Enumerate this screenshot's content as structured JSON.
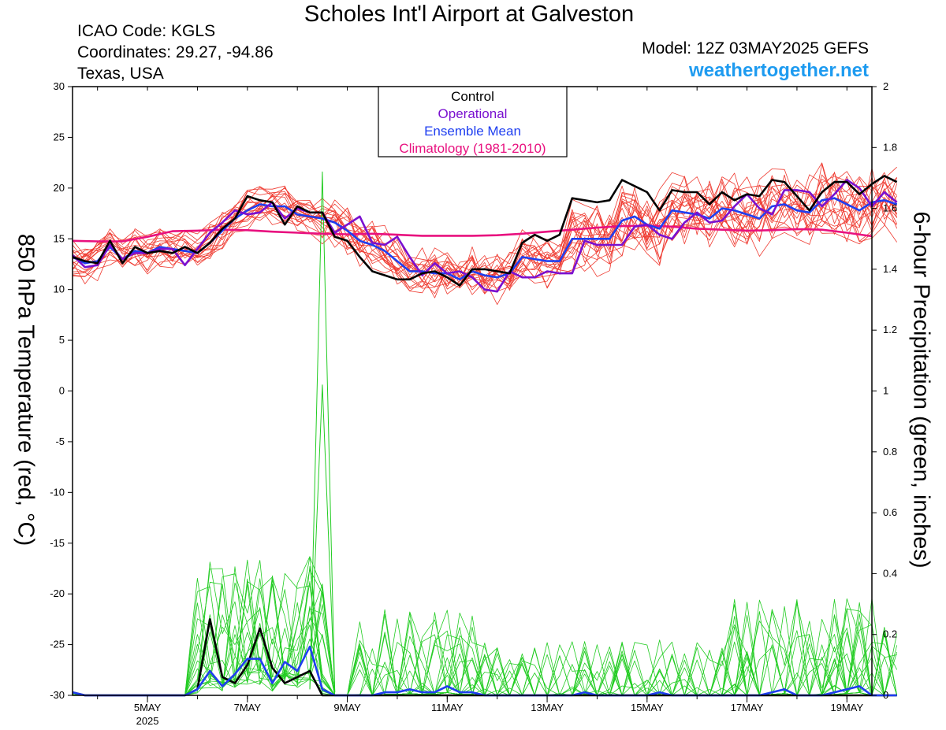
{
  "header": {
    "title": "Scholes Int'l Airport at Galveston",
    "icao": "ICAO Code: KGLS",
    "coords": "Coordinates: 29.27, -94.86",
    "region": "Texas, USA",
    "model": "Model: 12Z 03MAY2025 GEFS",
    "website": "weathertogether.net"
  },
  "colors": {
    "control": "#000000",
    "operational": "#7a10d0",
    "mean": "#1e3ef0",
    "climatology": "#e8117f",
    "members": "#ef3a30",
    "precip": "#22cc22",
    "website": "#1e9bf0"
  },
  "chart_data": {
    "type": "line",
    "title": "Scholes Int'l Airport at Galveston",
    "ylabel": "850 hPa Temperature (red, °C)",
    "y2label": "6-hour Precipitation (green, inches)",
    "x_range": [
      3.5,
      19.5
    ],
    "ylim": [
      -30,
      30
    ],
    "y2lim": [
      0,
      2
    ],
    "x_ticks": [
      {
        "x": 5,
        "label": "5MAY",
        "sub": "2025"
      },
      {
        "x": 7,
        "label": "7MAY",
        "sub": ""
      },
      {
        "x": 9,
        "label": "9MAY",
        "sub": ""
      },
      {
        "x": 11,
        "label": "11MAY",
        "sub": ""
      },
      {
        "x": 13,
        "label": "13MAY",
        "sub": ""
      },
      {
        "x": 15,
        "label": "15MAY",
        "sub": ""
      },
      {
        "x": 17,
        "label": "17MAY",
        "sub": ""
      },
      {
        "x": 19,
        "label": "19MAY",
        "sub": ""
      }
    ],
    "y_ticks": [
      "30",
      "25",
      "20",
      "15",
      "10",
      "5",
      "0",
      "-5",
      "-10",
      "-15",
      "-20",
      "-25",
      "-30"
    ],
    "y2_ticks": [
      "2",
      "1.8",
      "1.6",
      "1.4",
      "1.2",
      "1",
      "0.8",
      "0.6",
      "0.4",
      "0.2",
      "0"
    ],
    "legend": [
      {
        "label": "Control",
        "color": "#000000"
      },
      {
        "label": "Operational",
        "color": "#7a10d0"
      },
      {
        "label": "Ensemble Mean",
        "color": "#1e3ef0"
      },
      {
        "label": "Climatology (1981-2010)",
        "color": "#e8117f"
      }
    ],
    "legend_position": "top-center",
    "x_start": 3.5,
    "x_step": 0.25,
    "temperature": {
      "control": [
        13.2,
        12.8,
        12.6,
        14.8,
        12.6,
        14.2,
        13.6,
        13.8,
        13.6,
        14.2,
        13.6,
        14.6,
        16.0,
        17.0,
        19.2,
        18.8,
        18.6,
        16.4,
        18.2,
        17.6,
        17.6,
        15.2,
        14.8,
        13.2,
        11.8,
        11.4,
        11.0,
        11.0,
        11.6,
        11.8,
        11.2,
        10.4,
        12.0,
        12.0,
        11.8,
        11.6,
        14.6,
        15.4,
        14.8,
        15.4,
        19.0,
        18.8,
        18.6,
        18.8,
        20.8,
        20.2,
        19.6,
        17.8,
        19.8,
        19.6,
        19.6,
        18.4,
        19.6,
        18.8,
        19.4,
        19.2,
        20.8,
        20.6,
        19.2,
        17.8,
        19.6,
        20.6,
        20.6,
        19.4,
        20.4,
        21.2,
        20.6
      ],
      "operational": [
        13.4,
        12.2,
        12.4,
        14.4,
        13.0,
        13.6,
        13.6,
        14.0,
        14.0,
        12.4,
        14.0,
        15.6,
        16.6,
        17.8,
        17.4,
        17.6,
        18.6,
        17.0,
        18.0,
        17.6,
        17.6,
        15.6,
        16.4,
        17.2,
        14.6,
        14.4,
        15.2,
        13.2,
        11.4,
        12.6,
        11.6,
        11.8,
        11.2,
        10.0,
        9.8,
        11.8,
        11.2,
        11.2,
        11.8,
        11.6,
        11.6,
        14.8,
        14.4,
        14.4,
        14.4,
        16.2,
        16.4,
        15.4,
        15.0,
        16.6,
        17.6,
        16.6,
        16.8,
        18.2,
        19.4,
        18.0,
        17.4,
        19.8,
        19.8,
        19.6,
        18.2,
        19.4,
        20.8,
        20.0,
        18.2,
        19.6,
        18.6
      ],
      "mean": [
        13.2,
        12.6,
        12.8,
        14.2,
        13.0,
        13.8,
        13.6,
        14.2,
        14.0,
        13.8,
        13.6,
        14.6,
        15.8,
        17.0,
        17.8,
        18.4,
        18.2,
        18.2,
        17.4,
        17.2,
        17.0,
        16.6,
        15.8,
        14.8,
        14.4,
        13.8,
        12.8,
        11.8,
        11.8,
        11.6,
        11.6,
        11.0,
        11.8,
        11.4,
        11.2,
        11.6,
        13.2,
        13.0,
        12.8,
        12.8,
        15.0,
        15.0,
        15.0,
        15.0,
        16.8,
        17.2,
        16.4,
        16.0,
        17.8,
        17.6,
        17.4,
        17.0,
        18.0,
        17.8,
        17.4,
        17.0,
        18.2,
        18.4,
        17.8,
        17.6,
        18.8,
        19.0,
        18.4,
        17.8,
        18.6,
        18.8,
        18.4
      ],
      "climatology": [
        [
          3.5,
          14.8
        ],
        [
          4.0,
          14.75
        ],
        [
          4.5,
          14.75
        ],
        [
          5.0,
          15.2
        ],
        [
          5.5,
          15.75
        ],
        [
          6.0,
          15.8
        ],
        [
          6.5,
          15.9
        ],
        [
          7.0,
          15.85
        ],
        [
          7.5,
          15.7
        ],
        [
          8.0,
          15.6
        ],
        [
          8.5,
          15.5
        ],
        [
          9.0,
          15.45
        ],
        [
          9.5,
          15.5
        ],
        [
          10.0,
          15.4
        ],
        [
          10.5,
          15.3
        ],
        [
          11.0,
          15.3
        ],
        [
          11.5,
          15.3
        ],
        [
          12.0,
          15.35
        ],
        [
          12.5,
          15.5
        ],
        [
          13.0,
          15.7
        ],
        [
          13.5,
          15.9
        ],
        [
          14.0,
          16.1
        ],
        [
          14.5,
          16.25
        ],
        [
          15.0,
          16.3
        ],
        [
          15.5,
          16.2
        ],
        [
          16.0,
          16.0
        ],
        [
          16.5,
          15.9
        ],
        [
          17.0,
          15.8
        ],
        [
          17.5,
          15.85
        ],
        [
          18.0,
          15.95
        ],
        [
          18.5,
          15.9
        ],
        [
          19.0,
          15.6
        ],
        [
          19.5,
          15.25
        ]
      ]
    },
    "precipitation": {
      "control": [
        0.01,
        0,
        0,
        0,
        0,
        0,
        0,
        0,
        0,
        0,
        0.02,
        0.25,
        0.06,
        0.04,
        0.1,
        0.22,
        0.09,
        0.04,
        0.06,
        0.08,
        0,
        0,
        0,
        0,
        0,
        0,
        0,
        0,
        0,
        0,
        0,
        0,
        0,
        0,
        0,
        0,
        0,
        0,
        0,
        0,
        0,
        0,
        0,
        0,
        0,
        0,
        0,
        0,
        0,
        0,
        0,
        0,
        0,
        0,
        0,
        0,
        0,
        0,
        0,
        0,
        0,
        0,
        0,
        0,
        0,
        0,
        0
      ],
      "mean": [
        0.01,
        0,
        0,
        0,
        0,
        0,
        0,
        0,
        0,
        0,
        0.02,
        0.08,
        0.03,
        0.07,
        0.12,
        0.12,
        0.04,
        0.11,
        0.08,
        0.16,
        0.02,
        0,
        0,
        0,
        0,
        0.01,
        0.01,
        0.02,
        0.01,
        0.01,
        0.03,
        0.01,
        0.01,
        0,
        0,
        0,
        0,
        0,
        0,
        0,
        0,
        0.01,
        0,
        0,
        0,
        0,
        0,
        0.01,
        0,
        0,
        0,
        0,
        0,
        0,
        0,
        0,
        0.01,
        0.02,
        0,
        0,
        0,
        0.01,
        0.02,
        0.03,
        0,
        0,
        0
      ],
      "spike_x": 8.5,
      "spike_values": [
        1.72,
        1.02
      ]
    }
  }
}
